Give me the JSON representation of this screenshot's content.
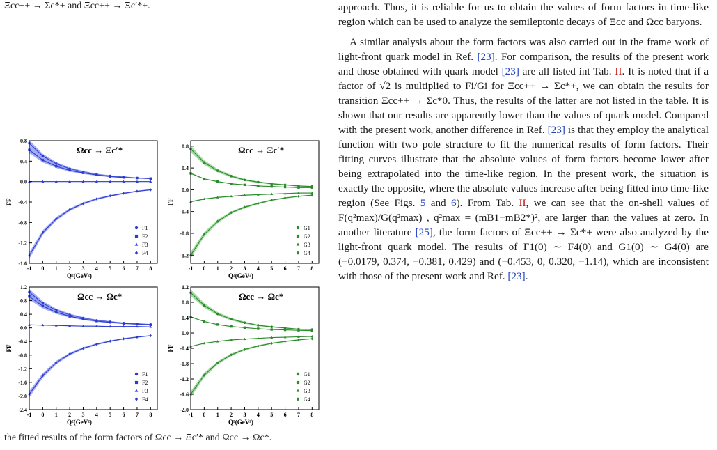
{
  "caption_top": "Ξcc++ → Σc*+ and Ξcc++ → Ξc′*+.",
  "caption_bottom": "the fitted results of the form factors of Ωcc → Ξc′* and Ωcc → Ωc*.",
  "panels": [
    {
      "title": "Ωcc → Ξc′*",
      "color": "#2b3bd0",
      "band": "#8f98ee",
      "legend": [
        "F1",
        "F2",
        "F3",
        "F4"
      ],
      "xlabel": "Q²(GeV²)",
      "ylabel": "FF",
      "yticks": [
        "0.8",
        "0.4",
        "0.0",
        "-0.4",
        "-0.8",
        "-1.2",
        "-1.6"
      ],
      "chart_data": {
        "type": "line",
        "x": [
          -1,
          0,
          1,
          2,
          3,
          4,
          5,
          6,
          7,
          8
        ],
        "ylim": [
          -1.6,
          0.8
        ],
        "series": [
          {
            "name": "F1",
            "values": [
              0.75,
              0.5,
              0.35,
              0.25,
              0.19,
              0.14,
              0.11,
              0.09,
              0.07,
              0.06
            ]
          },
          {
            "name": "F2",
            "values": [
              0.62,
              0.42,
              0.3,
              0.22,
              0.17,
              0.13,
              0.1,
              0.08,
              0.07,
              0.06
            ]
          },
          {
            "name": "F3",
            "values": [
              0.0,
              0.0,
              0.0,
              0.0,
              0.0,
              0.0,
              0.0,
              0.0,
              0.0,
              0.0
            ]
          },
          {
            "name": "F4",
            "values": [
              -1.45,
              -1.0,
              -0.73,
              -0.55,
              -0.43,
              -0.34,
              -0.28,
              -0.23,
              -0.19,
              -0.16
            ]
          }
        ]
      }
    },
    {
      "title": "Ωcc → Ξc′*",
      "color": "#2b8a2b",
      "band": "#8ccf8c",
      "legend": [
        "G1",
        "G2",
        "G3",
        "G4"
      ],
      "xlabel": "Q²(GeV²)",
      "ylabel": "FF",
      "yticks": [
        "0.8",
        "0.4",
        "0.0",
        "-0.4",
        "-0.8",
        "-1.2"
      ],
      "chart_data": {
        "type": "line",
        "x": [
          -1,
          0,
          1,
          2,
          3,
          4,
          5,
          6,
          7,
          8
        ],
        "ylim": [
          -1.35,
          0.9
        ],
        "series": [
          {
            "name": "G1",
            "values": [
              0.75,
              0.5,
              0.35,
              0.25,
              0.18,
              0.14,
              0.11,
              0.09,
              0.07,
              0.06
            ]
          },
          {
            "name": "G2",
            "values": [
              0.3,
              0.2,
              0.15,
              0.11,
              0.09,
              0.07,
              0.06,
              0.05,
              0.04,
              0.04
            ]
          },
          {
            "name": "G3",
            "values": [
              -0.22,
              -0.17,
              -0.14,
              -0.12,
              -0.1,
              -0.09,
              -0.08,
              -0.07,
              -0.06,
              -0.06
            ]
          },
          {
            "name": "G4",
            "values": [
              -1.2,
              -0.82,
              -0.58,
              -0.42,
              -0.32,
              -0.25,
              -0.19,
              -0.15,
              -0.12,
              -0.1
            ]
          }
        ]
      }
    },
    {
      "title": "Ωcc → Ωc*",
      "color": "#2b3bd0",
      "band": "#8f98ee",
      "legend": [
        "F1",
        "F2",
        "F3",
        "F4"
      ],
      "xlabel": "Q²(GeV²)",
      "ylabel": "FF",
      "yticks": [
        "1.2",
        "0.8",
        "0.4",
        "0.0",
        "-0.4",
        "-0.8",
        "-1.2",
        "-1.6",
        "-2.0",
        "-2.4"
      ],
      "chart_data": {
        "type": "line",
        "x": [
          -1,
          0,
          1,
          2,
          3,
          4,
          5,
          6,
          7,
          8
        ],
        "ylim": [
          -2.4,
          1.2
        ],
        "series": [
          {
            "name": "F1",
            "values": [
              1.05,
              0.72,
              0.52,
              0.38,
              0.29,
              0.22,
              0.18,
              0.14,
              0.12,
              0.1
            ]
          },
          {
            "name": "F2",
            "values": [
              0.92,
              0.64,
              0.46,
              0.34,
              0.26,
              0.2,
              0.16,
              0.13,
              0.11,
              0.09
            ]
          },
          {
            "name": "F3",
            "values": [
              0.09,
              0.08,
              0.07,
              0.06,
              0.05,
              0.05,
              0.04,
              0.04,
              0.04,
              0.03
            ]
          },
          {
            "name": "F4",
            "values": [
              -1.95,
              -1.4,
              -1.02,
              -0.77,
              -0.6,
              -0.48,
              -0.39,
              -0.32,
              -0.27,
              -0.23
            ]
          }
        ]
      }
    },
    {
      "title": "Ωcc → Ωc*",
      "color": "#2b8a2b",
      "band": "#8ccf8c",
      "legend": [
        "G1",
        "G2",
        "G3",
        "G4"
      ],
      "xlabel": "Q²(GeV²)",
      "ylabel": "FF",
      "yticks": [
        "1.2",
        "0.8",
        "0.4",
        "0.0",
        "-0.4",
        "-0.8",
        "-1.2",
        "-1.6",
        "-2.0"
      ],
      "chart_data": {
        "type": "line",
        "x": [
          -1,
          0,
          1,
          2,
          3,
          4,
          5,
          6,
          7,
          8
        ],
        "ylim": [
          -2.0,
          1.2
        ],
        "series": [
          {
            "name": "G1",
            "values": [
              1.05,
              0.72,
              0.5,
              0.36,
              0.27,
              0.2,
              0.16,
              0.13,
              0.1,
              0.09
            ]
          },
          {
            "name": "G2",
            "values": [
              0.42,
              0.3,
              0.22,
              0.17,
              0.14,
              0.11,
              0.09,
              0.08,
              0.07,
              0.06
            ]
          },
          {
            "name": "G3",
            "values": [
              -0.35,
              -0.27,
              -0.22,
              -0.18,
              -0.16,
              -0.14,
              -0.12,
              -0.11,
              -0.1,
              -0.09
            ]
          },
          {
            "name": "G4",
            "values": [
              -1.6,
              -1.1,
              -0.78,
              -0.57,
              -0.43,
              -0.34,
              -0.27,
              -0.22,
              -0.18,
              -0.15
            ]
          }
        ]
      }
    }
  ],
  "xticks": [
    "-1",
    "0",
    "1",
    "2",
    "3",
    "4",
    "5",
    "6",
    "7",
    "8"
  ],
  "text_p1": "approach. Thus, it is reliable for us to obtain the values of form factors in time-like region which can be used to analyze the semileptonic decays of Ξcc and Ωcc baryons.",
  "text_p2a": "A similar analysis about the form factors was also carried out in the frame work of light-front quark model in Ref. ",
  "ref23": "[23]",
  "text_p2b": ". For comparison, the results of the present work and those obtained with quark model ",
  "text_p2c": " are all listed int Tab. ",
  "tab2": "II",
  "text_p2d": ". It is noted that if a factor of √2 is multiplied to Fi/Gi for Ξcc++ → Σc*+, we can obtain the results for transition Ξcc++ → Σc*0. Thus, the results of the latter are not listed in the table. It is shown that our results are apparently lower than the values of quark model. Compared with the present work, another difference in Ref. ",
  "text_p2e": " is that they employ the analytical function with two pole structure to fit the numerical results of form factors. Their fitting curves illustrate that the absolute values of form factors become lower after being extrapolated into the time-like region. In the present work, the situation is exactly the opposite, where the absolute values increase after being fitted into time-like region (See Figs. ",
  "fig5": "5",
  "text_and": " and ",
  "fig6": "6",
  "text_p2f": "). From Tab. ",
  "text_p2g": ", we can see that the on-shell values of F(q²max)/G(q²max) , q²max = (mB1−mB2*)², are larger than the values at zero. In another literature ",
  "ref25": "[25]",
  "text_p2h": ", the form factors of Ξcc++ → Σc*+ were also analyzed by the light-front quark model. The results of F1(0) ∼ F4(0) and G1(0) ∼ G4(0) are (−0.0179, 0.374, −0.381, 0.429) and (−0.453, 0, 0.320, −1.14), which are inconsistent with those of the present work and Ref. ",
  "text_end": "."
}
